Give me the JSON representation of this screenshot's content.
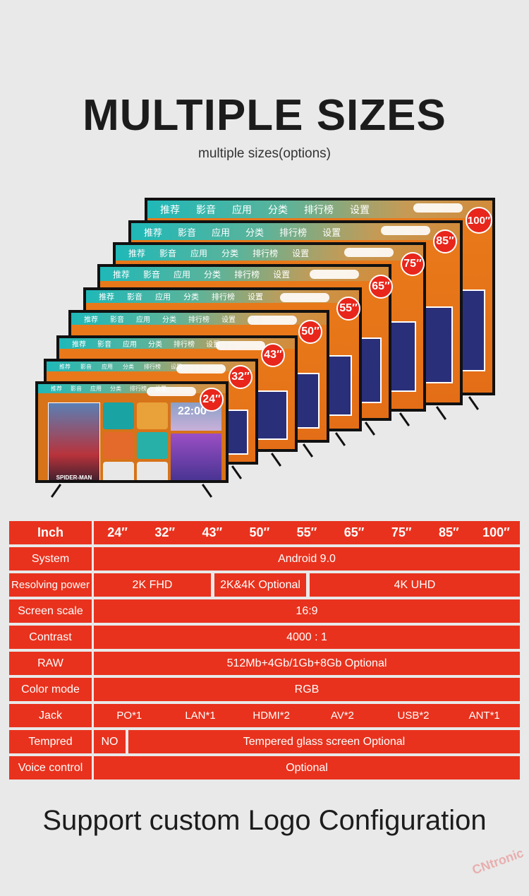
{
  "header": {
    "title": "MULTIPLE SIZES",
    "subtitle": "multiple sizes(options)"
  },
  "tv_menu": [
    "推荐",
    "影音",
    "应用",
    "分类",
    "排行榜",
    "设置"
  ],
  "tv_sizes": [
    "100",
    "85",
    "75",
    "65",
    "55",
    "50",
    "43",
    "32",
    "24"
  ],
  "tv_front": {
    "poster_title": "SPIDER-MAN",
    "clock": "22:00"
  },
  "table": {
    "inch": {
      "label": "Inch",
      "values": [
        "24″",
        "32″",
        "43″",
        "50″",
        "55″",
        "65″",
        "75″",
        "85″",
        "100″"
      ]
    },
    "system": {
      "label": "System",
      "value": "Android 9.0"
    },
    "resolving": {
      "label": "Resolving power",
      "values": [
        "2K FHD",
        "2K&4K Optional",
        "4K UHD"
      ]
    },
    "screen_scale": {
      "label": "Screen scale",
      "value": "16:9"
    },
    "contrast": {
      "label": "Contrast",
      "value": "4000 : 1"
    },
    "raw": {
      "label": "RAW",
      "value": "512Mb+4Gb/1Gb+8Gb  Optional"
    },
    "color_mode": {
      "label": "Color mode",
      "value": "RGB"
    },
    "jack": {
      "label": "Jack",
      "values": [
        "PO*1",
        "LAN*1",
        "HDMI*2",
        "AV*2",
        "USB*2",
        "ANT*1"
      ]
    },
    "tempred": {
      "label": "Tempred",
      "values": [
        "NO",
        "Tempered glass screen Optional"
      ]
    },
    "voice": {
      "label": "Voice control",
      "value": "Optional"
    }
  },
  "footer": {
    "text": "Support custom Logo Configuration"
  },
  "watermark": "CNtronic",
  "colors": {
    "accent": "#e8321d",
    "background": "#e9e9e9"
  }
}
